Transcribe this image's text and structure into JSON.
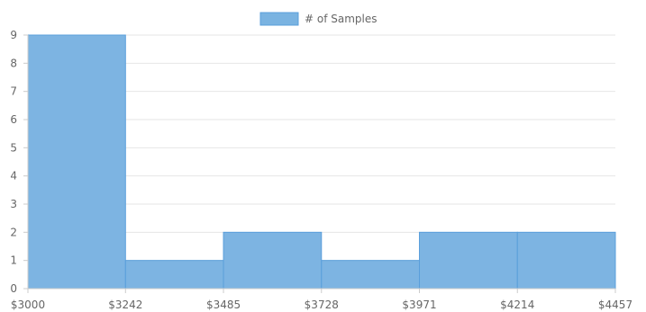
{
  "chart_data": {
    "type": "bar",
    "categories": [
      "$3000",
      "$3242",
      "$3485",
      "$3728",
      "$3971",
      "$4214",
      "$4457"
    ],
    "bins": [
      {
        "from": 3000,
        "to": 3242,
        "value": 9
      },
      {
        "from": 3242,
        "to": 3485,
        "value": 1
      },
      {
        "from": 3485,
        "to": 3728,
        "value": 2
      },
      {
        "from": 3728,
        "to": 3971,
        "value": 1
      },
      {
        "from": 3971,
        "to": 4214,
        "value": 2
      },
      {
        "from": 4214,
        "to": 4457,
        "value": 2
      }
    ],
    "series": [
      {
        "name": "# of Samples",
        "values": [
          9,
          1,
          2,
          1,
          2,
          2
        ]
      }
    ],
    "yticks": [
      "0",
      "1",
      "2",
      "3",
      "4",
      "5",
      "6",
      "7",
      "8",
      "9"
    ],
    "ylim": [
      0,
      9
    ],
    "xlim": [
      3000,
      4457
    ],
    "grid": true,
    "legend_position": "top-center",
    "colors": {
      "bar_fill": "#7ab3e1",
      "bar_stroke": "#5a9fdb",
      "grid": "#e6e6e6",
      "axis": "#cccccc",
      "text": "#666666"
    }
  }
}
